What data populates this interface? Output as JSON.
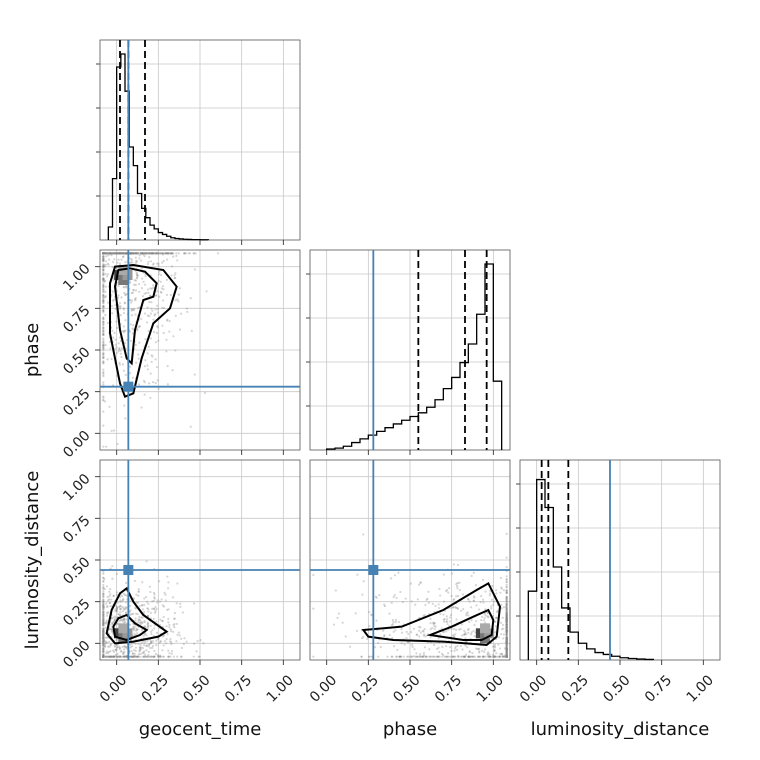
{
  "chart_data": {
    "type": "corner",
    "parameters": [
      {
        "name": "geocent_time",
        "xlabel": "geocent_time",
        "truth": 0.07,
        "quantiles": [
          0.02,
          0.07,
          0.17
        ],
        "ylabel": ""
      },
      {
        "name": "phase",
        "xlabel": "phase",
        "truth": 0.28,
        "quantiles": [
          0.55,
          0.83,
          0.96
        ],
        "ylabel": "phase"
      },
      {
        "name": "luminosity_distance",
        "xlabel": "luminosity_distance",
        "truth": 0.44,
        "quantiles": [
          0.03,
          0.07,
          0.19
        ],
        "ylabel": "luminosity_distance"
      }
    ],
    "axis_range": [
      -0.1,
      1.1
    ],
    "ticks": [
      "0.00",
      "0.25",
      "0.50",
      "0.75",
      "1.00"
    ],
    "tick_values": [
      0,
      0.25,
      0.5,
      0.75,
      1.0
    ],
    "grid": true,
    "histograms": [
      {
        "parameter": "geocent_time",
        "bin_edges": [
          -0.05,
          -0.025,
          0.0,
          0.025,
          0.05,
          0.075,
          0.1,
          0.125,
          0.15,
          0.175,
          0.2,
          0.225,
          0.25,
          0.275,
          0.3,
          0.325,
          0.35,
          0.375,
          0.4,
          0.425,
          0.45,
          0.475,
          0.5,
          0.525,
          0.55
        ],
        "heights": [
          0.07,
          0.33,
          0.93,
          1.0,
          0.8,
          0.5,
          0.4,
          0.25,
          0.17,
          0.12,
          0.08,
          0.06,
          0.04,
          0.03,
          0.02,
          0.012,
          0.008,
          0.006,
          0.004,
          0.003,
          0.002,
          0.002,
          0.001,
          0.001
        ]
      },
      {
        "parameter": "phase",
        "bin_edges": [
          0.0,
          0.05,
          0.1,
          0.15,
          0.2,
          0.25,
          0.3,
          0.35,
          0.4,
          0.45,
          0.5,
          0.55,
          0.6,
          0.65,
          0.7,
          0.75,
          0.8,
          0.85,
          0.9,
          0.95,
          1.0,
          1.05
        ],
        "heights": [
          0.005,
          0.01,
          0.02,
          0.04,
          0.06,
          0.08,
          0.1,
          0.12,
          0.14,
          0.16,
          0.18,
          0.2,
          0.23,
          0.27,
          0.33,
          0.39,
          0.47,
          0.57,
          0.73,
          1.0,
          0.37
        ]
      },
      {
        "parameter": "luminosity_distance",
        "bin_edges": [
          -0.05,
          0.0,
          0.05,
          0.1,
          0.15,
          0.2,
          0.25,
          0.3,
          0.35,
          0.4,
          0.45,
          0.5,
          0.55,
          0.6,
          0.65,
          0.7
        ],
        "heights": [
          0.37,
          0.97,
          0.82,
          0.5,
          0.28,
          0.15,
          0.09,
          0.06,
          0.04,
          0.03,
          0.02,
          0.012,
          0.008,
          0.005,
          0.003
        ]
      }
    ],
    "panels_2d": [
      {
        "x": "geocent_time",
        "y": "phase",
        "truth": [
          0.07,
          0.28
        ],
        "peak": [
          0.04,
          0.95
        ],
        "contours": [
          [
            [
              0.01,
              0.98
            ],
            [
              0.08,
              0.99
            ],
            [
              0.17,
              0.97
            ],
            [
              0.24,
              0.9
            ],
            [
              0.22,
              0.82
            ],
            [
              0.16,
              0.8
            ],
            [
              0.11,
              0.62
            ],
            [
              0.09,
              0.42
            ],
            [
              0.06,
              0.45
            ],
            [
              0.02,
              0.62
            ],
            [
              -0.01,
              0.88
            ],
            [
              0.01,
              0.98
            ]
          ],
          [
            [
              -0.01,
              1.0
            ],
            [
              0.1,
              1.01
            ],
            [
              0.28,
              0.98
            ],
            [
              0.36,
              0.88
            ],
            [
              0.32,
              0.75
            ],
            [
              0.22,
              0.66
            ],
            [
              0.15,
              0.45
            ],
            [
              0.1,
              0.24
            ],
            [
              0.05,
              0.22
            ],
            [
              0.02,
              0.3
            ],
            [
              -0.04,
              0.6
            ],
            [
              -0.04,
              0.9
            ],
            [
              -0.01,
              1.0
            ]
          ]
        ]
      },
      {
        "x": "geocent_time",
        "y": "luminosity_distance",
        "truth": [
          0.07,
          0.44
        ],
        "peak": [
          0.04,
          0.06
        ],
        "contours": [
          [
            [
              0.01,
              0.15
            ],
            [
              0.06,
              0.17
            ],
            [
              0.11,
              0.12
            ],
            [
              0.18,
              0.08
            ],
            [
              0.14,
              0.05
            ],
            [
              0.06,
              0.02
            ],
            [
              -0.01,
              0.04
            ],
            [
              -0.02,
              0.1
            ],
            [
              0.01,
              0.15
            ]
          ],
          [
            [
              -0.03,
              0.2
            ],
            [
              0.02,
              0.3
            ],
            [
              0.06,
              0.33
            ],
            [
              0.1,
              0.25
            ],
            [
              0.16,
              0.17
            ],
            [
              0.3,
              0.07
            ],
            [
              0.25,
              0.04
            ],
            [
              0.1,
              0.01
            ],
            [
              -0.01,
              0.0
            ],
            [
              -0.06,
              0.06
            ],
            [
              -0.03,
              0.2
            ]
          ]
        ]
      },
      {
        "x": "phase",
        "y": "luminosity_distance",
        "truth": [
          0.28,
          0.44
        ],
        "peak": [
          0.95,
          0.06
        ],
        "contours": [
          [
            [
              0.62,
              0.05
            ],
            [
              0.75,
              0.1
            ],
            [
              0.88,
              0.16
            ],
            [
              0.97,
              0.2
            ],
            [
              1.0,
              0.14
            ],
            [
              0.99,
              0.05
            ],
            [
              0.93,
              0.02
            ],
            [
              0.82,
              0.02
            ],
            [
              0.62,
              0.05
            ]
          ],
          [
            [
              0.22,
              0.08
            ],
            [
              0.45,
              0.1
            ],
            [
              0.7,
              0.2
            ],
            [
              0.9,
              0.32
            ],
            [
              0.97,
              0.36
            ],
            [
              1.04,
              0.22
            ],
            [
              1.02,
              0.04
            ],
            [
              0.96,
              -0.01
            ],
            [
              0.7,
              0.01
            ],
            [
              0.4,
              0.02
            ],
            [
              0.25,
              0.04
            ],
            [
              0.22,
              0.08
            ]
          ]
        ]
      }
    ]
  }
}
